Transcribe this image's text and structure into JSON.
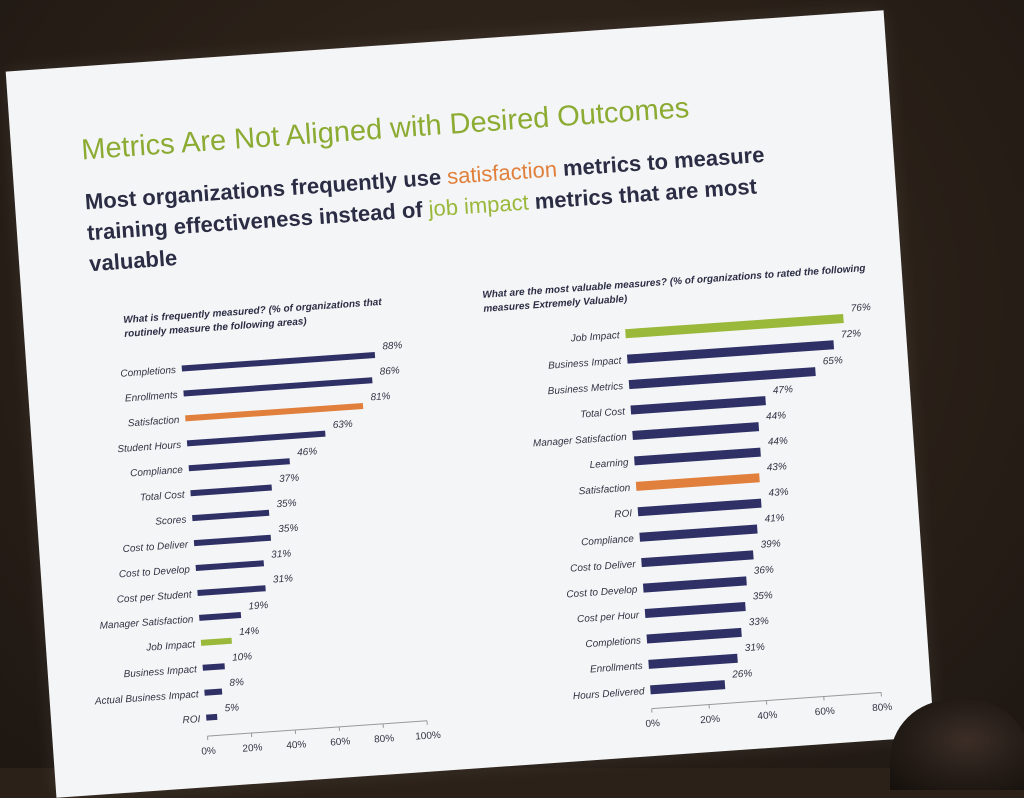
{
  "slide": {
    "title": "Metrics Are Not Aligned with Desired Outcomes",
    "subtitle_parts": [
      "Most organizations frequently use ",
      "satisfaction",
      " metrics to measure training effectiveness instead of ",
      "job impact",
      " metrics that are most valuable"
    ]
  },
  "colors": {
    "bar_default": "#2f3166",
    "bar_satisfaction": "#e0803c",
    "bar_job_impact": "#9ab83a",
    "title": "#8cab32"
  },
  "chart_data": [
    {
      "type": "bar",
      "orientation": "horizontal",
      "title": "What is frequently measured? (% of organizations that routinely measure the following areas)",
      "categories": [
        "Completions",
        "Enrollments",
        "Satisfaction",
        "Student Hours",
        "Compliance",
        "Total Cost",
        "Scores",
        "Cost to Deliver",
        "Cost to Develop",
        "Cost per Student",
        "Manager Satisfaction",
        "Job Impact",
        "Business Impact",
        "Actual Business Impact",
        "ROI"
      ],
      "values": [
        88,
        86,
        81,
        63,
        46,
        37,
        35,
        35,
        31,
        31,
        19,
        14,
        10,
        8,
        5
      ],
      "value_labels": [
        "88%",
        "86%",
        "81%",
        "63%",
        "46%",
        "37%",
        "35%",
        "35%",
        "31%",
        "31%",
        "19%",
        "14%",
        "10%",
        "8%",
        "5%"
      ],
      "highlight": {
        "Satisfaction": "bar_satisfaction",
        "Job Impact": "bar_job_impact"
      },
      "x_ticks": [
        "0%",
        "20%",
        "40%",
        "60%",
        "80%",
        "100%"
      ],
      "xlim": [
        0,
        100
      ]
    },
    {
      "type": "bar",
      "orientation": "horizontal",
      "title": "What are the most valuable measures? (% of organizations to rated the following measures Extremely Valuable)",
      "categories": [
        "Job Impact",
        "Business Impact",
        "Business Metrics",
        "Total Cost",
        "Manager Satisfaction",
        "Learning",
        "Satisfaction",
        "ROI",
        "Compliance",
        "Cost to Deliver",
        "Cost to Develop",
        "Cost per Hour",
        "Completions",
        "Enrollments",
        "Hours Delivered"
      ],
      "values": [
        76,
        72,
        65,
        47,
        44,
        44,
        43,
        43,
        41,
        39,
        36,
        35,
        33,
        31,
        26
      ],
      "value_labels": [
        "76%",
        "72%",
        "65%",
        "47%",
        "44%",
        "44%",
        "43%",
        "43%",
        "41%",
        "39%",
        "36%",
        "35%",
        "33%",
        "31%",
        "26%"
      ],
      "highlight": {
        "Satisfaction": "bar_satisfaction",
        "Job Impact": "bar_job_impact"
      },
      "x_ticks": [
        "0%",
        "20%",
        "40%",
        "60%",
        "80%"
      ],
      "xlim": [
        0,
        80
      ]
    }
  ]
}
